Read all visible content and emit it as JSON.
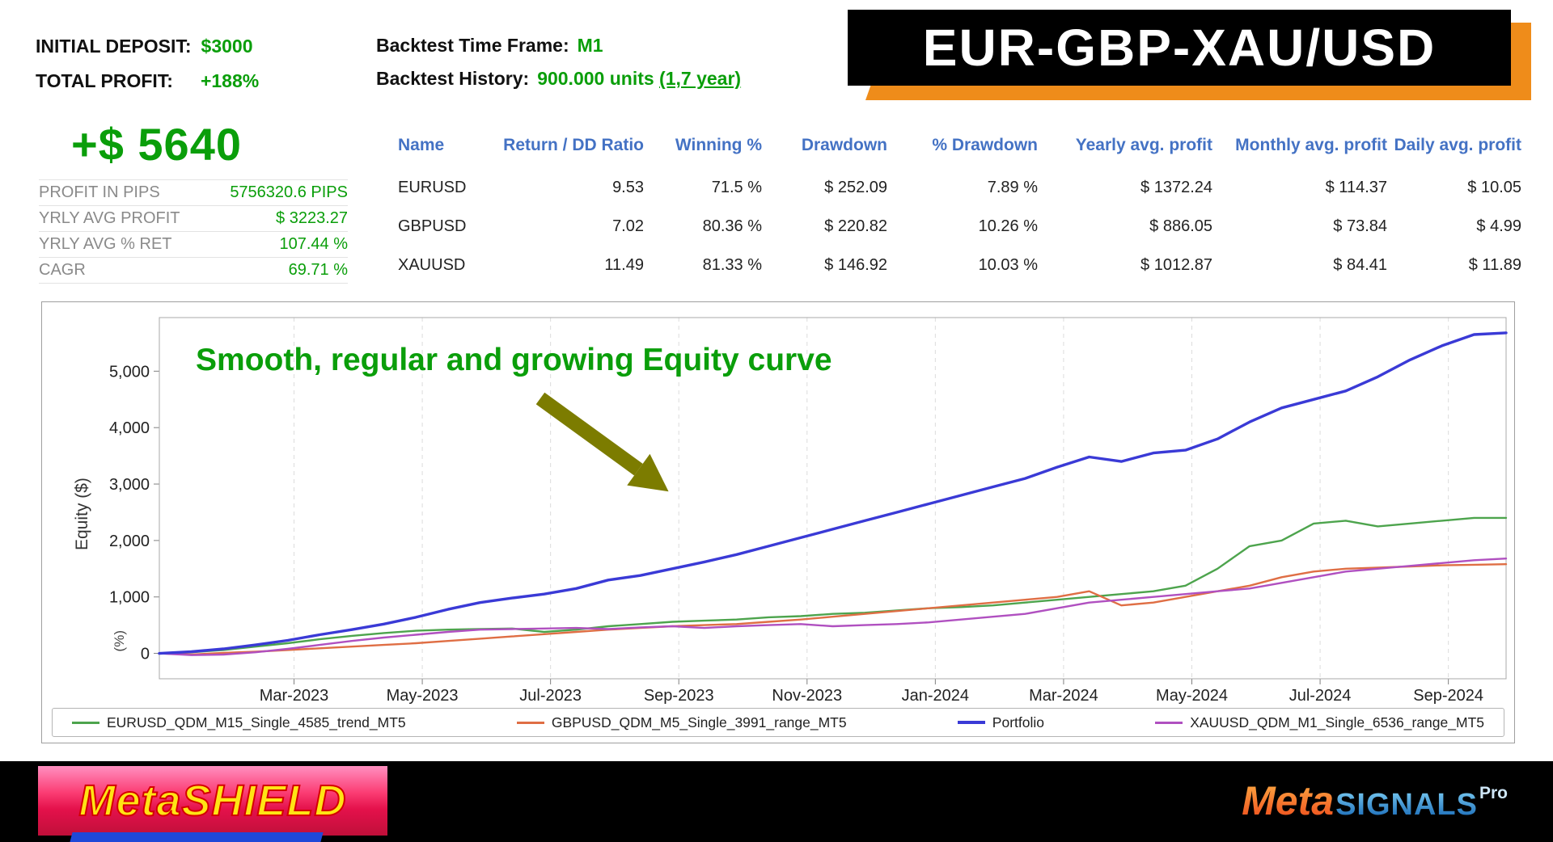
{
  "colors": {
    "accent_green": "#0a9e0a",
    "table_header_blue": "#4472c4",
    "banner_orange": "#ef8c1a",
    "arrow_olive": "#7c7c00",
    "portfolio_blue": "#3a3ad6",
    "eurusd_green": "#4da44d",
    "gbpusd_orange": "#df6e44",
    "xauusd_purple": "#b050c0"
  },
  "header": {
    "deposit_label": "INITIAL DEPOSIT:",
    "deposit_value": "$3000",
    "profit_label": "TOTAL PROFIT:",
    "profit_value": "+188%",
    "timeframe_label": "Backtest Time Frame:",
    "timeframe_value": "M1",
    "history_label": "Backtest History:",
    "history_value": "900.000 units",
    "history_link": "(1,7 year)",
    "banner_title": "EUR-GBP-XAU/USD"
  },
  "summary": {
    "total_profit_usd": "+$ 5640",
    "rows": [
      {
        "label": "PROFIT IN PIPS",
        "value": "5756320.6 PIPS"
      },
      {
        "label": "YRLY AVG PROFIT",
        "value": "$ 3223.27"
      },
      {
        "label": "YRLY AVG % RET",
        "value": "107.44 %"
      },
      {
        "label": "CAGR",
        "value": "69.71 %"
      }
    ]
  },
  "table": {
    "columns": [
      "Name",
      "Return / DD Ratio",
      "Winning %",
      "Drawdown",
      "% Drawdown",
      "Yearly avg. profit",
      "Monthly avg. profit",
      "Daily avg. profit"
    ],
    "rows": [
      [
        "EURUSD",
        "9.53",
        "71.5 %",
        "$ 252.09",
        "7.89 %",
        "$ 1372.24",
        "$ 114.37",
        "$ 10.05"
      ],
      [
        "GBPUSD",
        "7.02",
        "80.36 %",
        "$ 220.82",
        "10.26 %",
        "$ 886.05",
        "$ 73.84",
        "$ 4.99"
      ],
      [
        "XAUUSD",
        "11.49",
        "81.33 %",
        "$ 146.92",
        "10.03 %",
        "$ 1012.87",
        "$ 84.41",
        "$ 11.89"
      ]
    ]
  },
  "chart_data": {
    "type": "line",
    "title": "",
    "annotation": "Smooth, regular and growing Equity curve",
    "ylabel": "Equity ($)",
    "ylabel_secondary": "(%)",
    "ylim": [
      -450,
      5950
    ],
    "yticks": [
      0,
      1000,
      2000,
      3000,
      4000,
      5000
    ],
    "ytick_labels": [
      "0",
      "1,000",
      "2,000",
      "3,000",
      "4,000",
      "5,000"
    ],
    "x_unit": "months",
    "x_domain": [
      0,
      21
    ],
    "x_points_step": 0.5,
    "grid": "vertical-dashed",
    "legend_position": "bottom",
    "xticks": [
      {
        "pos": 2.1,
        "label": "Mar-2023"
      },
      {
        "pos": 4.1,
        "label": "May-2023"
      },
      {
        "pos": 6.1,
        "label": "Jul-2023"
      },
      {
        "pos": 8.1,
        "label": "Sep-2023"
      },
      {
        "pos": 10.1,
        "label": "Nov-2023"
      },
      {
        "pos": 12.1,
        "label": "Jan-2024"
      },
      {
        "pos": 14.1,
        "label": "Mar-2024"
      },
      {
        "pos": 16.1,
        "label": "May-2024"
      },
      {
        "pos": 18.1,
        "label": "Jul-2024"
      },
      {
        "pos": 20.1,
        "label": "Sep-2024"
      }
    ],
    "series": [
      {
        "key": "eurusd",
        "name": "EURUSD_QDM_M15_Single_4585_trend_MT5",
        "color": "#4da44d",
        "values": [
          0,
          20,
          60,
          120,
          180,
          250,
          310,
          360,
          400,
          420,
          430,
          440,
          380,
          420,
          480,
          520,
          560,
          580,
          600,
          640,
          660,
          700,
          720,
          760,
          800,
          820,
          850,
          900,
          950,
          1000,
          1050,
          1100,
          1200,
          1500,
          1900,
          2000,
          2300,
          2350,
          2250,
          2300,
          2350,
          2400,
          2400
        ]
      },
      {
        "key": "gbpusd",
        "name": "GBPUSD_QDM_M5_Single_3991_range_MT5",
        "color": "#df6e44",
        "values": [
          0,
          -20,
          10,
          30,
          60,
          90,
          120,
          150,
          180,
          220,
          260,
          300,
          340,
          380,
          420,
          450,
          480,
          500,
          520,
          560,
          600,
          650,
          700,
          750,
          800,
          850,
          900,
          950,
          1000,
          1100,
          850,
          900,
          1000,
          1100,
          1200,
          1350,
          1450,
          1500,
          1520,
          1540,
          1560,
          1570,
          1580
        ]
      },
      {
        "key": "portfolio",
        "name": "Portfolio",
        "color": "#3a3ad6",
        "values": [
          0,
          30,
          80,
          150,
          230,
          330,
          420,
          520,
          640,
          780,
          900,
          980,
          1050,
          1150,
          1300,
          1380,
          1500,
          1620,
          1750,
          1900,
          2050,
          2200,
          2350,
          2500,
          2650,
          2800,
          2950,
          3100,
          3300,
          3480,
          3400,
          3550,
          3600,
          3800,
          4100,
          4350,
          4500,
          4650,
          4900,
          5200,
          5450,
          5650,
          5680
        ]
      },
      {
        "key": "xauusd",
        "name": "XAUUSD_QDM_M1_Single_6536_range_MT5",
        "color": "#b050c0",
        "values": [
          0,
          -30,
          -20,
          20,
          80,
          150,
          220,
          280,
          330,
          380,
          420,
          430,
          440,
          450,
          430,
          460,
          480,
          450,
          480,
          500,
          520,
          480,
          500,
          520,
          550,
          600,
          650,
          700,
          800,
          900,
          950,
          1000,
          1050,
          1100,
          1150,
          1250,
          1350,
          1450,
          1500,
          1550,
          1600,
          1650,
          1680
        ]
      }
    ]
  },
  "footer": {
    "brand_left": "MetaSHIELD",
    "brand_right_meta": "Meta",
    "brand_right_signals": "SIGNALS",
    "brand_right_pro": "Pro"
  }
}
